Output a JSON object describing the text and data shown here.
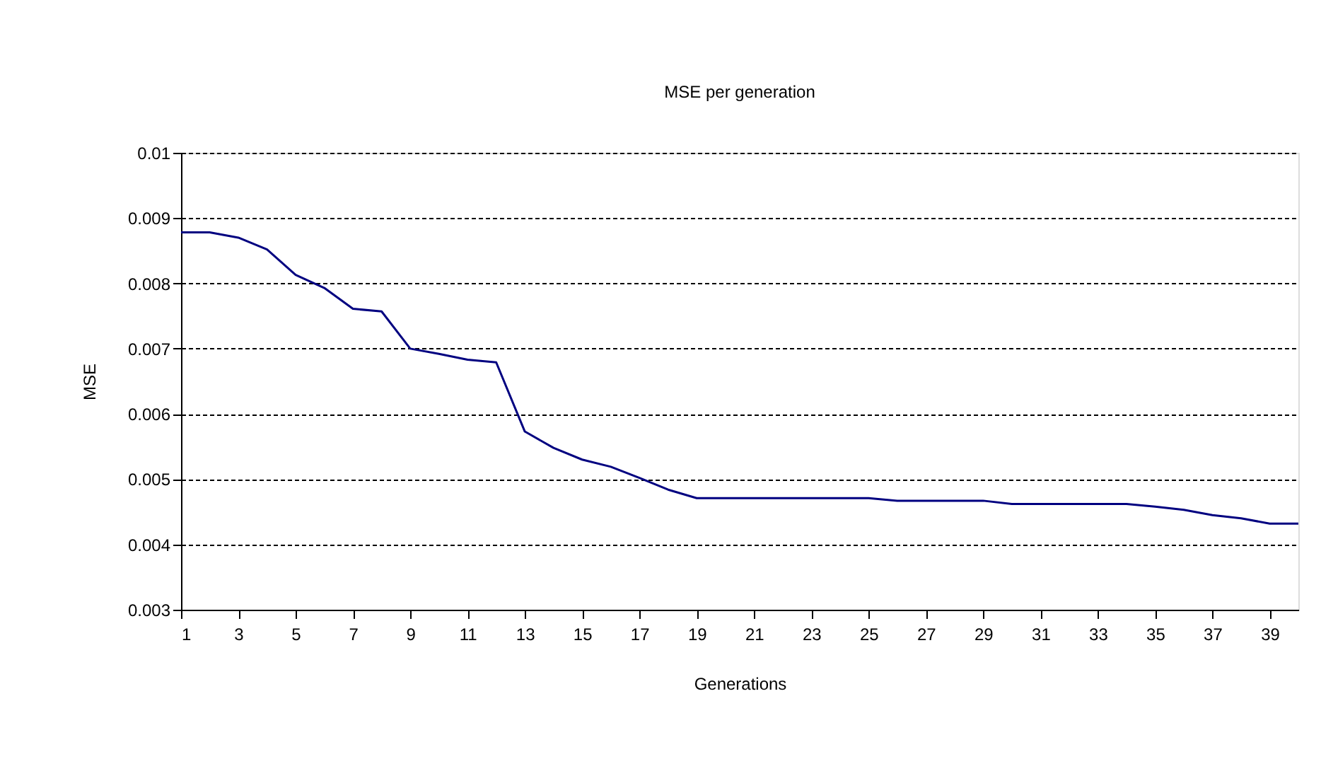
{
  "chart_data": {
    "type": "line",
    "title": "MSE per generation",
    "xlabel": "Generations",
    "ylabel": "MSE",
    "x": [
      1,
      2,
      3,
      4,
      5,
      6,
      7,
      8,
      9,
      10,
      11,
      12,
      13,
      14,
      15,
      16,
      17,
      18,
      19,
      20,
      21,
      22,
      23,
      24,
      25,
      26,
      27,
      28,
      29,
      30,
      31,
      32,
      33,
      34,
      35,
      36,
      37,
      38,
      39,
      40
    ],
    "series": [
      {
        "color": "#000080",
        "values": [
          0.00878,
          0.00878,
          0.0087,
          0.00852,
          0.00813,
          0.00793,
          0.00761,
          0.00757,
          0.007,
          0.00692,
          0.00683,
          0.00679,
          0.00573,
          0.00548,
          0.0053,
          0.00519,
          0.00502,
          0.00484,
          0.00471,
          0.00471,
          0.00471,
          0.00471,
          0.00471,
          0.00471,
          0.00471,
          0.00467,
          0.00467,
          0.00467,
          0.00467,
          0.00462,
          0.00462,
          0.00462,
          0.00462,
          0.00462,
          0.00458,
          0.00453,
          0.00445,
          0.0044,
          0.00432,
          0.00432
        ]
      }
    ],
    "xlim": [
      1,
      40
    ],
    "xticks": [
      1,
      3,
      5,
      7,
      9,
      11,
      13,
      15,
      17,
      19,
      21,
      23,
      25,
      27,
      29,
      31,
      33,
      35,
      37,
      39
    ],
    "ylim": [
      0.003,
      0.01
    ],
    "yticks": [
      0.003,
      0.004,
      0.005,
      0.006,
      0.007,
      0.008,
      0.009,
      0.01
    ],
    "grid": "y",
    "legend": false,
    "marker": "none",
    "line_style": "solid"
  }
}
